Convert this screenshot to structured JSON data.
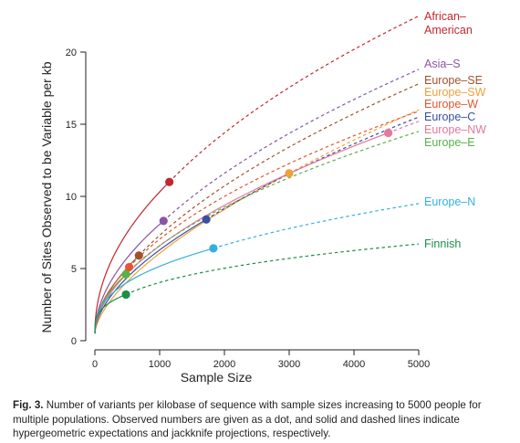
{
  "chart_data": {
    "type": "line",
    "xlabel": "Sample Size",
    "ylabel": "Number of Sites Observed to be Variable per kb",
    "xlim": [
      0,
      5000
    ],
    "ylim": [
      0,
      20
    ],
    "x_ticks": [
      "0",
      "1000",
      "2000",
      "3000",
      "4000",
      "5000"
    ],
    "y_ticks": [
      "0",
      "5",
      "10",
      "15",
      "20"
    ],
    "grid": false,
    "series": [
      {
        "name": "African–\nAmerican",
        "color": "#c0282d",
        "observed": {
          "x": 1150,
          "y": 11.0
        },
        "end_y": 22.5
      },
      {
        "name": "Asia–S",
        "color": "#8a55a6",
        "observed": {
          "x": 1060,
          "y": 8.3
        },
        "end_y": 18.8
      },
      {
        "name": "Europe–SE",
        "color": "#a0522d",
        "observed": {
          "x": 680,
          "y": 5.9
        },
        "end_y": 17.8
      },
      {
        "name": "Europe–SW",
        "color": "#f0a03c",
        "observed": {
          "x": 3000,
          "y": 11.6
        },
        "end_y": 16.0
      },
      {
        "name": "Europe–W",
        "color": "#e8542e",
        "observed": {
          "x": 530,
          "y": 5.1
        },
        "end_y": 15.9
      },
      {
        "name": "Europe–C",
        "color": "#3b4fa0",
        "observed": {
          "x": 1720,
          "y": 8.4
        },
        "end_y": 15.5
      },
      {
        "name": "Europe–NW",
        "color": "#e8779a",
        "observed": {
          "x": 4530,
          "y": 14.4
        },
        "end_y": 15.2
      },
      {
        "name": "Europe–E",
        "color": "#58b147",
        "observed": {
          "x": 480,
          "y": 4.6
        },
        "end_y": 14.5
      },
      {
        "name": "Europe–N",
        "color": "#33b0e0",
        "observed": {
          "x": 1830,
          "y": 6.4
        },
        "end_y": 9.5
      },
      {
        "name": "Finnish",
        "color": "#1b8f48",
        "observed": {
          "x": 480,
          "y": 3.2
        },
        "end_y": 6.7
      }
    ]
  },
  "caption": {
    "lead": "Fig. 3.",
    "text": " Number of variants per kilobase of sequence with sample sizes increasing to 5000 people for multiple populations. Observed numbers are given as a dot, and solid and dashed lines indicate hypergeometric expectations and jackknife projections, respectively."
  }
}
